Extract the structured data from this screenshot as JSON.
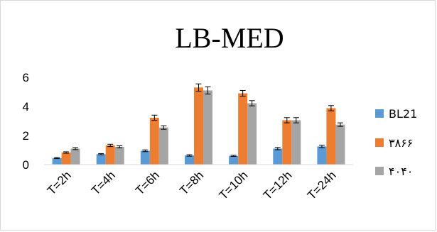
{
  "chart_data": {
    "type": "bar",
    "title": "LB-MED",
    "xlabel": "",
    "ylabel": "",
    "ylim": [
      0,
      6
    ],
    "yticks": [
      0,
      2,
      4,
      6
    ],
    "grid": false,
    "legend_position": "right",
    "categories": [
      "T=2h",
      "T=4h",
      "T=6h",
      "T=8h",
      "T=10h",
      "T=12h",
      "T=24h"
    ],
    "series": [
      {
        "name": "BL21",
        "color": "#5b9bd5",
        "values": [
          0.45,
          0.72,
          0.95,
          0.63,
          0.6,
          1.1,
          1.25
        ],
        "errors": [
          0.04,
          0.04,
          0.06,
          0.05,
          0.04,
          0.08,
          0.08
        ]
      },
      {
        "name": "۳۸۶۶",
        "color": "#ed7d31",
        "values": [
          0.83,
          1.32,
          3.22,
          5.3,
          4.9,
          3.05,
          3.88
        ],
        "errors": [
          0.05,
          0.08,
          0.18,
          0.25,
          0.2,
          0.18,
          0.18
        ]
      },
      {
        "name": "۴۰۴۰",
        "color": "#a5a5a5",
        "values": [
          1.1,
          1.22,
          2.55,
          5.1,
          4.22,
          3.05,
          2.75
        ],
        "errors": [
          0.07,
          0.07,
          0.12,
          0.25,
          0.18,
          0.18,
          0.12
        ]
      }
    ]
  }
}
